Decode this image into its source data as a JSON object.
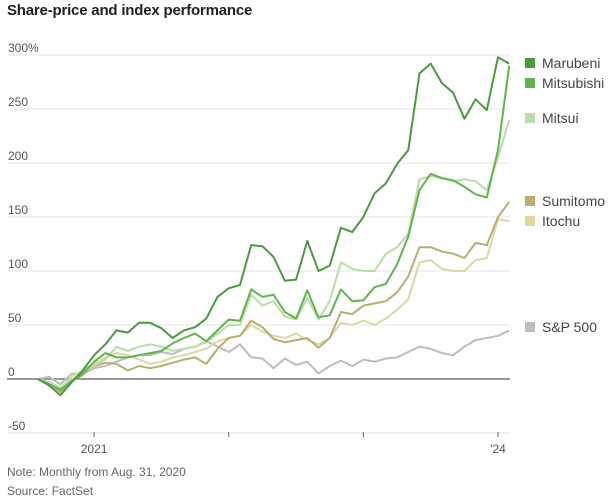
{
  "chart_data": {
    "type": "line",
    "title": "Share-price and index performance",
    "xlabel": "",
    "ylabel": "",
    "ylim": [
      -50,
      300
    ],
    "yticks": [
      {
        "value": 300,
        "label": "300%"
      },
      {
        "value": 250,
        "label": "250"
      },
      {
        "value": 200,
        "label": "200"
      },
      {
        "value": 150,
        "label": "150"
      },
      {
        "value": 100,
        "label": "100"
      },
      {
        "value": 50,
        "label": "50"
      },
      {
        "value": 0,
        "label": "0"
      },
      {
        "value": -50,
        "label": "-50"
      }
    ],
    "xticks": [
      {
        "month_index": 5,
        "label": "2021"
      },
      {
        "month_index": 17,
        "label": ""
      },
      {
        "month_index": 29,
        "label": ""
      },
      {
        "month_index": 41,
        "label": "'24"
      }
    ],
    "x_start": "Aug. 31, 2020",
    "x_frequency": "monthly",
    "grid": true,
    "legend_position": "right (labels aligned to line ends)",
    "series": [
      {
        "name": "Marubeni",
        "color": "#4a9a3f",
        "values": [
          0,
          -6,
          -15,
          -3,
          8,
          22,
          32,
          45,
          43,
          52,
          52,
          47,
          38,
          45,
          48,
          56,
          76,
          84,
          87,
          124,
          123,
          113,
          91,
          92,
          128,
          100,
          105,
          140,
          136,
          150,
          172,
          181,
          199,
          212,
          283,
          292,
          274,
          265,
          241,
          259,
          249,
          298,
          292
        ]
      },
      {
        "name": "Mitsubishi",
        "color": "#5fb648",
        "values": [
          0,
          -5,
          -10,
          -2,
          5,
          16,
          24,
          20,
          20,
          22,
          24,
          26,
          33,
          38,
          42,
          35,
          45,
          55,
          54,
          83,
          76,
          78,
          62,
          56,
          82,
          57,
          59,
          83,
          72,
          73,
          85,
          88,
          106,
          132,
          175,
          190,
          186,
          184,
          178,
          171,
          168,
          212,
          290
        ]
      },
      {
        "name": "Mitsui",
        "color": "#bcdcaa",
        "values": [
          0,
          -3,
          -8,
          0,
          6,
          12,
          18,
          30,
          26,
          30,
          32,
          30,
          26,
          28,
          30,
          34,
          42,
          50,
          50,
          78,
          68,
          72,
          58,
          55,
          75,
          55,
          72,
          108,
          102,
          100,
          100,
          116,
          122,
          135,
          185,
          188,
          186,
          183,
          185,
          183,
          175,
          205,
          240
        ]
      },
      {
        "name": "Sumitomo",
        "color": "#b9ae70",
        "values": [
          0,
          -4,
          -12,
          -2,
          4,
          12,
          15,
          14,
          8,
          12,
          10,
          12,
          15,
          18,
          20,
          14,
          28,
          38,
          40,
          54,
          48,
          37,
          34,
          36,
          38,
          29,
          38,
          62,
          60,
          68,
          70,
          72,
          80,
          95,
          122,
          122,
          118,
          116,
          112,
          126,
          124,
          150,
          164
        ]
      },
      {
        "name": "Itochu",
        "color": "#ddd7a4",
        "values": [
          0,
          -3,
          -10,
          3,
          8,
          14,
          20,
          24,
          22,
          18,
          14,
          16,
          20,
          22,
          25,
          28,
          35,
          38,
          40,
          50,
          44,
          40,
          38,
          42,
          36,
          32,
          38,
          52,
          50,
          54,
          50,
          56,
          64,
          74,
          108,
          110,
          102,
          100,
          100,
          110,
          112,
          148,
          146
        ]
      },
      {
        "name": "S&P 500",
        "color": "#bdbdbd",
        "values": [
          0,
          2,
          -5,
          5,
          5,
          10,
          12,
          16,
          20,
          22,
          22,
          25,
          23,
          28,
          30,
          35,
          30,
          25,
          32,
          20,
          19,
          10,
          19,
          13,
          16,
          5,
          12,
          17,
          12,
          18,
          16,
          19,
          20,
          25,
          30,
          28,
          24,
          22,
          30,
          36,
          38,
          40,
          45
        ]
      }
    ]
  },
  "legend": [
    {
      "label": "Marubeni",
      "color": "#4a9a3f"
    },
    {
      "label": "Mitsubishi",
      "color": "#5fb648"
    },
    {
      "label": "Mitsui",
      "color": "#bcdcaa"
    },
    {
      "label": "Sumitomo",
      "color": "#b9ae70"
    },
    {
      "label": "Itochu",
      "color": "#ddd7a4"
    },
    {
      "label": "S&P 500",
      "color": "#bdbdbd"
    }
  ],
  "notes": {
    "note": "Note: Monthly from Aug. 31, 2020",
    "source": "Source: FactSet"
  }
}
